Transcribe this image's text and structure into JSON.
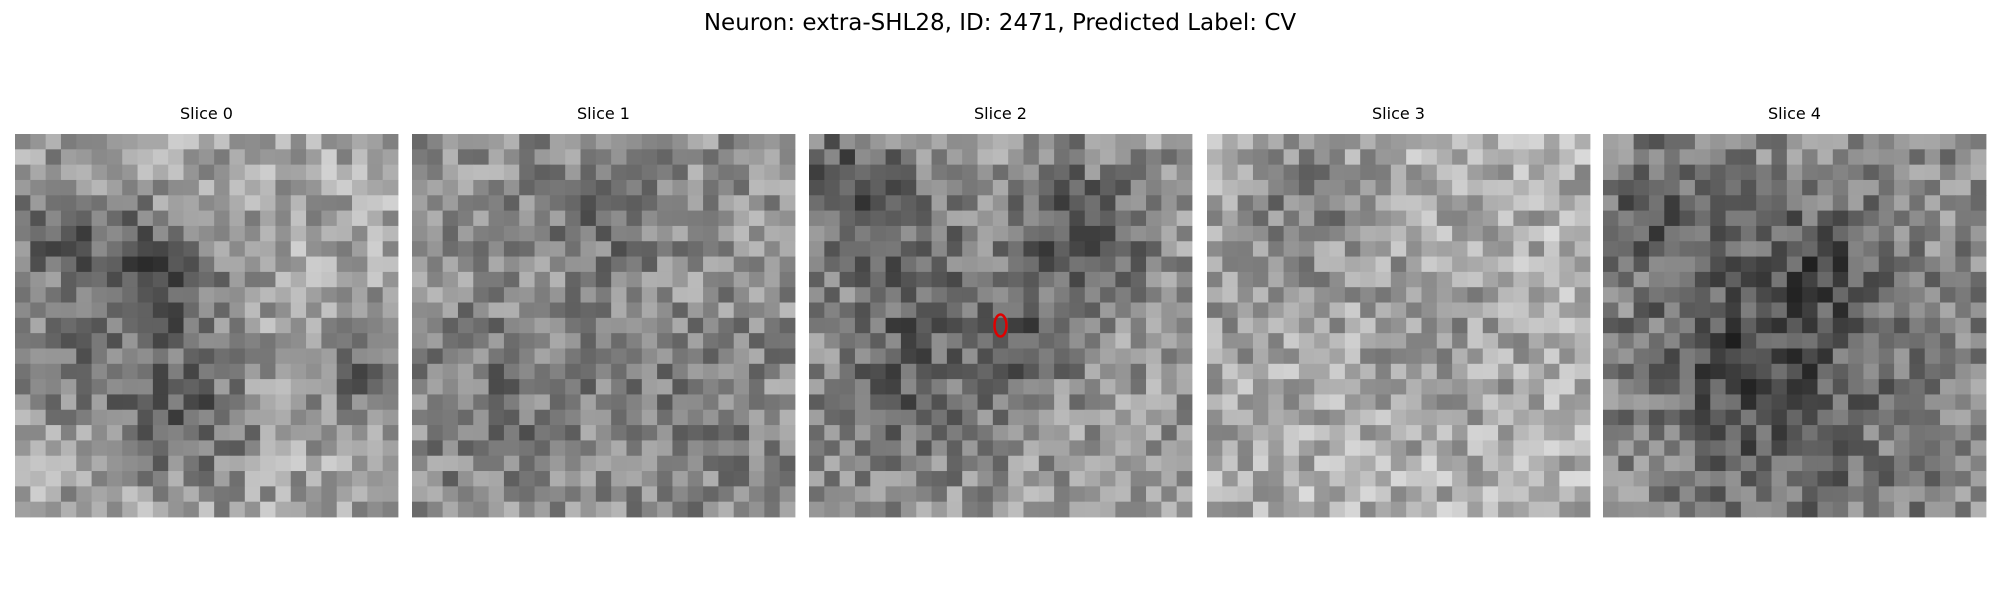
{
  "title": "Neuron: extra-SHL28, ID: 2471, Predicted Label: CV",
  "panels": [
    {
      "title": "Slice 0"
    },
    {
      "title": "Slice 1"
    },
    {
      "title": "Slice 2"
    },
    {
      "title": "Slice 3"
    },
    {
      "title": "Slice 4"
    }
  ]
}
